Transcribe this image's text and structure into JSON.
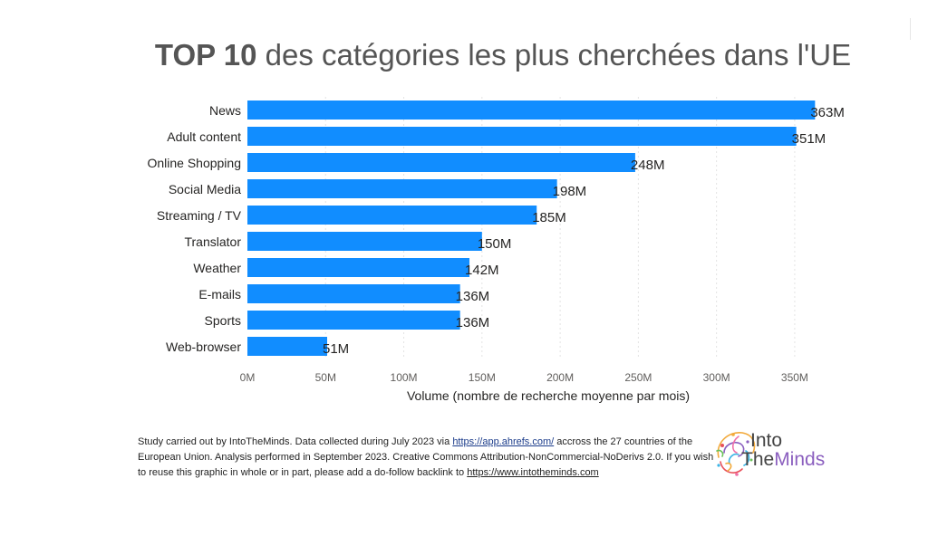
{
  "title": {
    "bold": "TOP 10",
    "rest": "des catégories les plus cherchées dans l'UE"
  },
  "chart_data": {
    "type": "bar",
    "orientation": "horizontal",
    "categories": [
      "News",
      "Adult content",
      "Online Shopping",
      "Social Media",
      "Streaming / TV",
      "Translator",
      "Weather",
      "E-mails",
      "Sports",
      "Web-browser"
    ],
    "values": [
      363,
      351,
      248,
      198,
      185,
      150,
      142,
      136,
      136,
      51
    ],
    "data_labels": [
      "363M",
      "351M",
      "248M",
      "198M",
      "185M",
      "150M",
      "142M",
      "136M",
      "136M",
      "51M"
    ],
    "x_ticks": [
      0,
      50,
      100,
      150,
      200,
      250,
      300,
      350
    ],
    "x_tick_labels": [
      "0M",
      "50M",
      "100M",
      "150M",
      "200M",
      "250M",
      "300M",
      "350M"
    ],
    "xlim": [
      0,
      360
    ],
    "xlabel": "Volume (nombre de recherche moyenne par mois)",
    "ylabel": "",
    "grid": "vertical, dashed",
    "bar_color": "#118dff"
  },
  "footer": {
    "part1": "Study carried out by IntoTheMinds. Data collected during July 2023 via ",
    "link1": "https://app.ahrefs.com/",
    "part2": " accross the 27 countries of the European Union. Analysis performed in September 2023. Creative Commons Attribution-NonCommercial-NoDerivs 2.0. If you wish to reuse this graphic in whole or in part, please add a do-follow backlink to ",
    "link2": "https://www.intotheminds.com"
  },
  "logo": {
    "line1": "Into",
    "line2_a": "The",
    "line2_b": "Minds",
    "accent": "#8b5fbf"
  }
}
